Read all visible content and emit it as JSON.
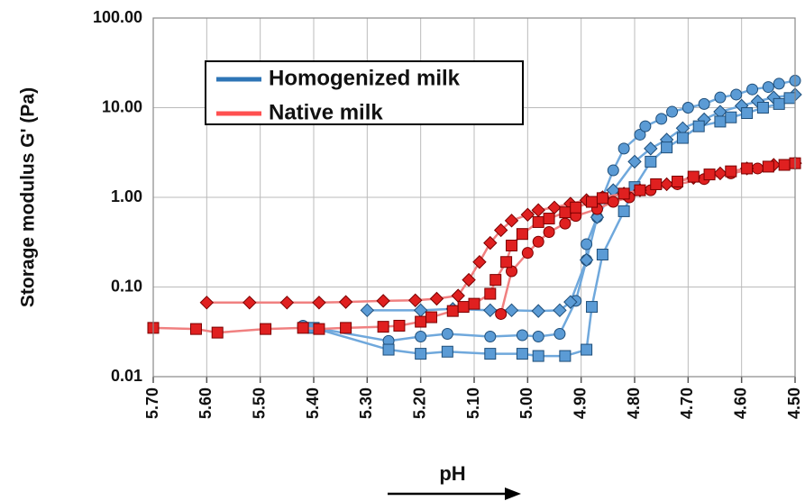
{
  "chart_data": {
    "type": "scatter",
    "x_label": "pH",
    "y_label": "Storage modulus G' (Pa)",
    "log_y": true,
    "x_reversed": true,
    "grid": true,
    "legend": "upper left",
    "xlim": [
      5.7,
      4.5
    ],
    "xticks": [
      {
        "value": 5.7,
        "label": "5.70"
      },
      {
        "value": 5.6,
        "label": "5.60"
      },
      {
        "value": 5.5,
        "label": "5.50"
      },
      {
        "value": 5.4,
        "label": "5.40"
      },
      {
        "value": 5.3,
        "label": "5.30"
      },
      {
        "value": 5.2,
        "label": "5.20"
      },
      {
        "value": 5.1,
        "label": "5.10"
      },
      {
        "value": 5.0,
        "label": "5.00"
      },
      {
        "value": 4.9,
        "label": "4.90"
      },
      {
        "value": 4.8,
        "label": "4.80"
      },
      {
        "value": 4.7,
        "label": "4.70"
      },
      {
        "value": 4.6,
        "label": "4.60"
      },
      {
        "value": 4.5,
        "label": "4.50"
      }
    ],
    "ylim": [
      0.01,
      100
    ],
    "yticks": [
      {
        "value": 0.01,
        "label": "0.01"
      },
      {
        "value": 0.1,
        "label": "0.10"
      },
      {
        "value": 1,
        "label": "1.00"
      },
      {
        "value": 10,
        "label": "10.00"
      },
      {
        "value": 100,
        "label": "100.00"
      }
    ],
    "series": [
      {
        "name": "Homogenized milk",
        "color": "#2e75b6",
        "line_color": "#6fa8dc",
        "marker_color": "#5b9bd5",
        "runs": [
          {
            "marker": "circle",
            "x": [
              5.42,
              5.26,
              5.2,
              5.15,
              5.07,
              5.01,
              4.98,
              4.94,
              4.91,
              4.89,
              4.89,
              4.87,
              4.86,
              4.84,
              4.82,
              4.79,
              4.78,
              4.75,
              4.73,
              4.7,
              4.67,
              4.64,
              4.61,
              4.58,
              4.55,
              4.53,
              4.5
            ],
            "values": [
              0.037,
              0.025,
              0.028,
              0.03,
              0.028,
              0.029,
              0.028,
              0.03,
              0.07,
              0.2,
              0.3,
              0.6,
              1.0,
              2,
              3.5,
              5,
              6.2,
              7.5,
              9,
              10,
              11,
              13,
              14,
              16,
              17,
              18.5,
              20
            ]
          },
          {
            "marker": "diamond",
            "x": [
              5.3,
              5.2,
              5.14,
              5.07,
              5.03,
              4.98,
              4.94,
              4.92,
              4.89,
              4.87,
              4.84,
              4.8,
              4.77,
              4.74,
              4.71,
              4.67,
              4.64,
              4.6,
              4.57,
              4.54,
              4.5
            ],
            "values": [
              0.055,
              0.055,
              0.057,
              0.055,
              0.055,
              0.054,
              0.055,
              0.068,
              0.2,
              0.6,
              1.2,
              2.5,
              3.5,
              4.4,
              5.9,
              7.4,
              9,
              10.5,
              11.8,
              13,
              14
            ]
          },
          {
            "marker": "square",
            "x": [
              5.4,
              5.26,
              5.2,
              5.15,
              5.07,
              5.01,
              4.98,
              4.93,
              4.89,
              4.88,
              4.86,
              4.82,
              4.8,
              4.77,
              4.74,
              4.71,
              4.68,
              4.64,
              4.62,
              4.59,
              4.56,
              4.53,
              4.51
            ],
            "values": [
              0.035,
              0.02,
              0.018,
              0.019,
              0.018,
              0.018,
              0.017,
              0.017,
              0.02,
              0.06,
              0.23,
              0.7,
              1.3,
              2.5,
              3.6,
              4.6,
              6.2,
              7,
              7.8,
              8.7,
              10,
              11,
              12.8
            ]
          }
        ]
      },
      {
        "name": "Native milk",
        "color": "#ff5050",
        "line_color": "#f08080",
        "marker_color": "#e02020",
        "runs": [
          {
            "marker": "circle",
            "x": [
              5.05,
              5.03,
              5.0,
              4.98,
              4.96,
              4.93,
              4.91,
              4.87,
              4.84,
              4.81,
              4.77,
              4.72,
              4.67,
              4.62,
              4.57,
              4.52,
              4.5
            ],
            "values": [
              0.05,
              0.15,
              0.24,
              0.32,
              0.41,
              0.51,
              0.62,
              0.74,
              0.89,
              1.0,
              1.2,
              1.4,
              1.6,
              1.85,
              2.1,
              2.3,
              2.4
            ]
          },
          {
            "marker": "diamond",
            "x": [
              5.6,
              5.52,
              5.45,
              5.39,
              5.34,
              5.27,
              5.21,
              5.17,
              5.13,
              5.11,
              5.09,
              5.07,
              5.05,
              5.03,
              5.0,
              4.98,
              4.95,
              4.92,
              4.89,
              4.86,
              4.82,
              4.79,
              4.74,
              4.69,
              4.64,
              4.59,
              4.54,
              4.5
            ],
            "values": [
              0.067,
              0.067,
              0.067,
              0.067,
              0.068,
              0.07,
              0.071,
              0.074,
              0.08,
              0.12,
              0.19,
              0.31,
              0.43,
              0.55,
              0.64,
              0.72,
              0.77,
              0.85,
              0.93,
              1.0,
              1.1,
              1.2,
              1.4,
              1.65,
              1.85,
              2.1,
              2.3,
              2.4
            ]
          },
          {
            "marker": "square",
            "x": [
              5.7,
              5.62,
              5.58,
              5.49,
              5.42,
              5.39,
              5.34,
              5.27,
              5.24,
              5.2,
              5.18,
              5.14,
              5.12,
              5.1,
              5.07,
              5.06,
              5.04,
              5.03,
              5.01,
              4.98,
              4.96,
              4.93,
              4.91,
              4.88,
              4.86,
              4.82,
              4.79,
              4.76,
              4.72,
              4.69,
              4.66,
              4.62,
              4.59,
              4.55,
              4.52,
              4.5
            ],
            "values": [
              0.035,
              0.034,
              0.031,
              0.034,
              0.035,
              0.034,
              0.035,
              0.036,
              0.037,
              0.041,
              0.046,
              0.054,
              0.06,
              0.065,
              0.084,
              0.12,
              0.19,
              0.29,
              0.39,
              0.53,
              0.58,
              0.68,
              0.77,
              0.89,
              0.98,
              1.1,
              1.2,
              1.4,
              1.5,
              1.7,
              1.8,
              1.95,
              2.1,
              2.2,
              2.3,
              2.4
            ]
          }
        ]
      }
    ]
  }
}
